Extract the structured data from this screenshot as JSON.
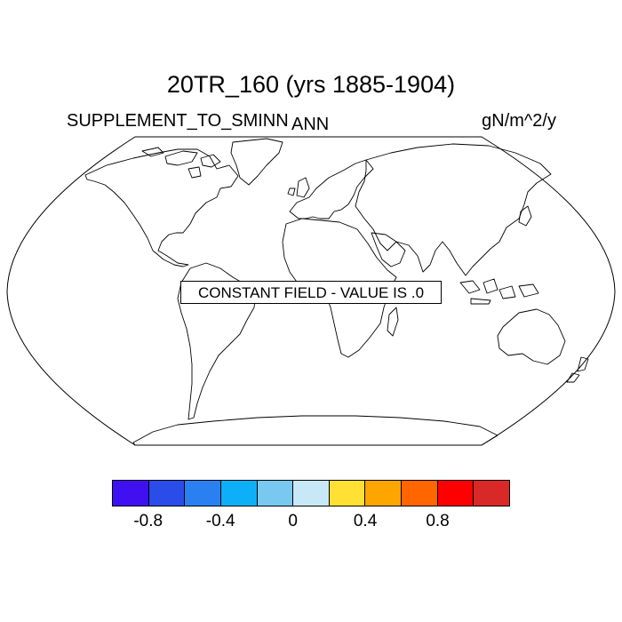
{
  "title": "20TR_160 (yrs 1885-1904)",
  "left_label": "SUPPLEMENT_TO_SMINN",
  "center_label": "ANN",
  "units_label": "gN/m^2/y",
  "constant_field_text": "CONSTANT FIELD - VALUE IS .0",
  "colorbar": {
    "colors": [
      "#4010f0",
      "#2a4ce8",
      "#2a80f0",
      "#0db0f8",
      "#78c8f0",
      "#c8e8f8",
      "#ffe033",
      "#ffa500",
      "#ff6600",
      "#ff0000",
      "#d82828"
    ],
    "tick_labels": [
      "-0.8",
      "-0.4",
      "0",
      "0.4",
      "0.8"
    ],
    "tick_values": [
      -0.8,
      -0.4,
      0,
      0.4,
      0.8
    ]
  }
}
